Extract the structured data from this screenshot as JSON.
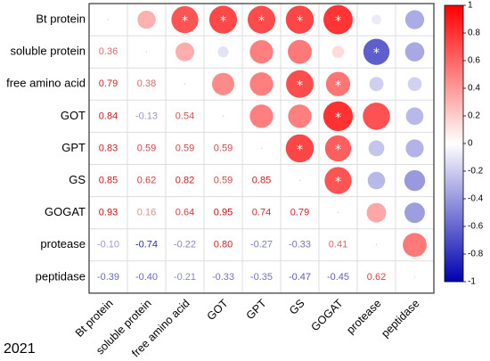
{
  "chart_data": {
    "type": "heatmap",
    "variables": [
      "Bt protein",
      "soluble protein",
      "free amino acid",
      "GOT",
      "GPT",
      "GS",
      "GOGAT",
      "protease",
      "peptidase"
    ],
    "lower_triangle_labels": [
      [],
      [
        "0.36"
      ],
      [
        "0.79",
        "0.38"
      ],
      [
        "0.84",
        "-0.13",
        "0.54"
      ],
      [
        "0.83",
        "0.59",
        "0.59",
        "0.59"
      ],
      [
        "0.85",
        "0.62",
        "0.82",
        "0.59",
        "0.85"
      ],
      [
        "0.93",
        "0.16",
        "0.64",
        "0.95",
        "0.74",
        "0.79"
      ],
      [
        "-0.10",
        "-0.74",
        "-0.22",
        "0.80",
        "-0.27",
        "-0.33",
        "0.41"
      ],
      [
        "-0.39",
        "-0.40",
        "-0.21",
        "-0.33",
        "-0.35",
        "-0.47",
        "-0.45",
        "0.62"
      ]
    ],
    "significant_marker": "*",
    "colorbar_ticks": [
      "1",
      "0.8",
      "0.6",
      "0.4",
      "0.2",
      "0",
      "-0.2",
      "-0.4",
      "-0.6",
      "-0.8",
      "-1"
    ],
    "colorbar_range": [
      -1,
      1
    ],
    "colors": {
      "positive": "#ff0000",
      "neutral": "#ffffff",
      "negative": "#0000b0",
      "grid": "#dddddd",
      "border": "#333333"
    },
    "year_label": "2021"
  }
}
